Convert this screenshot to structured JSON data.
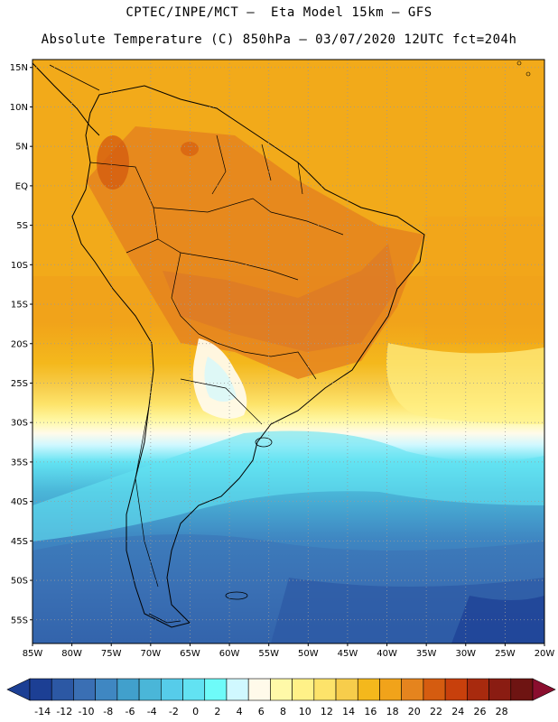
{
  "header": {
    "line1": "CPTEC/INPE/MCT –  Eta Model 15km – GFS",
    "line2": "Absolute Temperature (C) 850hPa – 03/07/2020 12UTC fct=204h"
  },
  "map": {
    "lon_range": [
      -85,
      -20
    ],
    "lat_range": [
      -58,
      16
    ],
    "lat_ticks": [
      {
        "value": 15,
        "label": "15N"
      },
      {
        "value": 10,
        "label": "10N"
      },
      {
        "value": 5,
        "label": "5N"
      },
      {
        "value": 0,
        "label": "EQ"
      },
      {
        "value": -5,
        "label": "5S"
      },
      {
        "value": -10,
        "label": "10S"
      },
      {
        "value": -15,
        "label": "15S"
      },
      {
        "value": -20,
        "label": "20S"
      },
      {
        "value": -25,
        "label": "25S"
      },
      {
        "value": -30,
        "label": "30S"
      },
      {
        "value": -35,
        "label": "35S"
      },
      {
        "value": -40,
        "label": "40S"
      },
      {
        "value": -45,
        "label": "45S"
      },
      {
        "value": -50,
        "label": "50S"
      },
      {
        "value": -55,
        "label": "55S"
      }
    ],
    "lon_ticks": [
      {
        "value": -85,
        "label": "85W"
      },
      {
        "value": -80,
        "label": "80W"
      },
      {
        "value": -75,
        "label": "75W"
      },
      {
        "value": -70,
        "label": "70W"
      },
      {
        "value": -65,
        "label": "65W"
      },
      {
        "value": -60,
        "label": "60W"
      },
      {
        "value": -55,
        "label": "55W"
      },
      {
        "value": -50,
        "label": "50W"
      },
      {
        "value": -45,
        "label": "45W"
      },
      {
        "value": -40,
        "label": "40W"
      },
      {
        "value": -35,
        "label": "35W"
      },
      {
        "value": -30,
        "label": "30W"
      },
      {
        "value": -25,
        "label": "25W"
      },
      {
        "value": -20,
        "label": "20W"
      }
    ],
    "grid": "dotted"
  },
  "colorbar": {
    "labels": [
      "-14",
      "-12",
      "-10",
      "-8",
      "-6",
      "-4",
      "-2",
      "0",
      "2",
      "4",
      "6",
      "8",
      "10",
      "12",
      "14",
      "16",
      "18",
      "20",
      "22",
      "24",
      "26",
      "28"
    ],
    "colors": [
      "#1c3f94",
      "#2c58a4",
      "#3a6fb4",
      "#3f87c2",
      "#41a0cc",
      "#4ab6d8",
      "#56ccea",
      "#62e2f2",
      "#6efbf9",
      "#d0f8ff",
      "#fffaea",
      "#fff9a8",
      "#fff188",
      "#fde36a",
      "#f7cd4b",
      "#f4b81c",
      "#f1a31a",
      "#e5841e",
      "#d55c10",
      "#c8400c",
      "#a82a0e",
      "#8a1c12",
      "#6e1412"
    ]
  }
}
